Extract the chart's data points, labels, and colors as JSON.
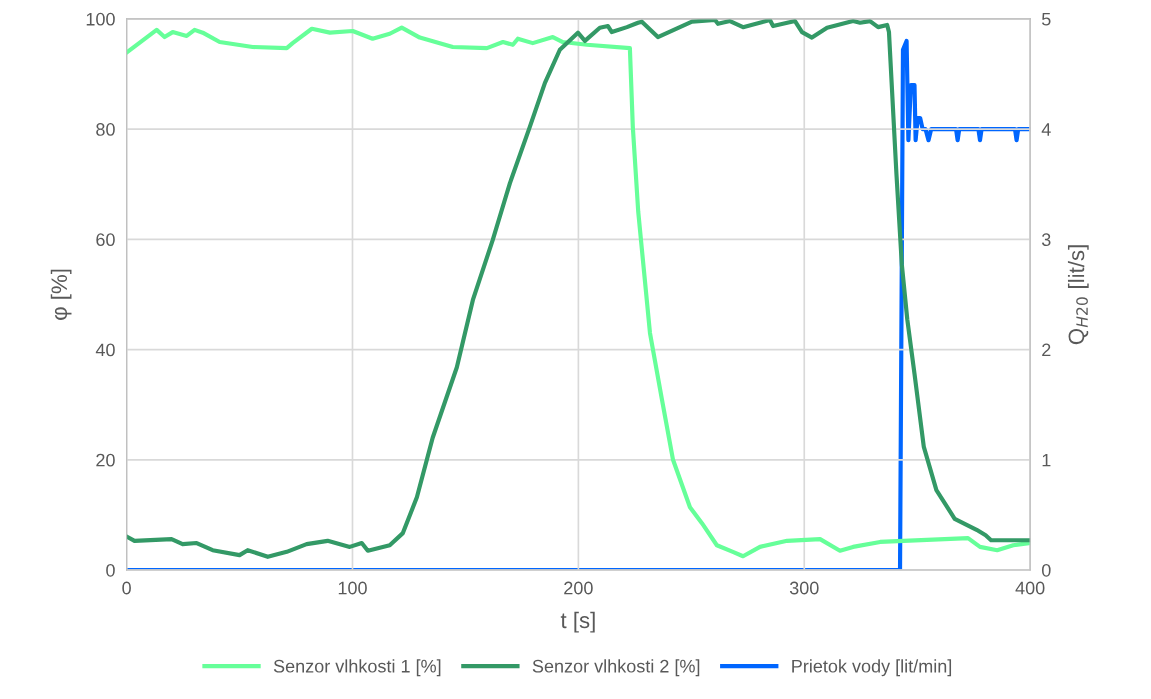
{
  "chart_data": {
    "type": "line",
    "xlabel": "t [s]",
    "ylabel": "φ [%]",
    "y2label": "Q$_{H20}$ [lit/s]",
    "xlim": [
      0,
      400
    ],
    "xticks": [
      0,
      100,
      200,
      300,
      400
    ],
    "ylim": [
      0,
      100
    ],
    "yticks": [
      0,
      20,
      40,
      60,
      80,
      100
    ],
    "y2lim": [
      0,
      5
    ],
    "y2ticks": [
      0,
      1,
      2,
      3,
      4,
      5
    ],
    "grid": true,
    "legend": "bottom",
    "marker": "none",
    "line_style": "solid",
    "series": [
      {
        "name": "Senzor vlhkosti 1 [%]",
        "color": "#66ff99",
        "x": [
          0.4,
          13.3,
          16.8,
          20.4,
          26.6,
          30.1,
          33.7,
          41.2,
          55.8,
          70.9,
          73.5,
          82.0,
          90,
          100.1,
          108.9,
          116.5,
          121.8,
          129.8,
          144.4,
          159.5,
          166.6,
          171.0,
          173.2,
          179.8,
          188.7,
          193.1,
          203.8,
          222.8,
          224.1,
          226.5,
          231.7,
          237,
          241.9,
          249.4,
          254.7,
          261.3,
          268.4,
          272.9,
          280.4,
          292.4,
          307,
          315.8,
          321.6,
          333.6,
          372.5,
          377.8,
          385.4,
          392.5,
          400
        ],
        "values": [
          94.0,
          98.0,
          96.7,
          97.6,
          96.9,
          98.0,
          97.5,
          95.8,
          94.9,
          94.7,
          95.6,
          98.2,
          97.5,
          97.8,
          96.4,
          97.3,
          98.4,
          96.6,
          94.9,
          94.7,
          95.8,
          95.3,
          96.4,
          95.6,
          96.7,
          95.8,
          95.3,
          94.7,
          80.4,
          65.0,
          43.0,
          30.9,
          20.0,
          11.4,
          8.5,
          4.5,
          3.3,
          2.5,
          4.2,
          5.3,
          5.6,
          3.5,
          4.2,
          5.1,
          5.8,
          4.2,
          3.6,
          4.5,
          4.9
        ]
      },
      {
        "name": "Senzor vlhkosti 2 [%]",
        "color": "#339966",
        "x": [
          0.4,
          3.5,
          19.9,
          24.8,
          31,
          38.1,
          50,
          53.6,
          62.5,
          70.9,
          79.7,
          89,
          98.8,
          104.1,
          106.8,
          116.5,
          122.3,
          128.5,
          135.5,
          146.2,
          153.3,
          162.1,
          169.7,
          178.5,
          185.2,
          191.8,
          199.8,
          202.9,
          209.5,
          213.1,
          214.8,
          221.5,
          226.4,
          228.1,
          235.2,
          250.3,
          260.5,
          261.8,
          267.1,
          272.9,
          284.8,
          286.2,
          295.9,
          299,
          303.4,
          310.1,
          321.6,
          324.7,
          329.1,
          332.7,
          336.7,
          337.5,
          340.8,
          343.2,
          345.6,
          348.8,
          352.9,
          358.5,
          366.6,
          376.3,
          380.3,
          382.7,
          400
        ],
        "values": [
          6.0,
          5.3,
          5.6,
          4.7,
          4.9,
          3.6,
          2.7,
          3.6,
          2.4,
          3.3,
          4.7,
          5.3,
          4.2,
          4.9,
          3.5,
          4.5,
          6.7,
          13.2,
          24.0,
          36.8,
          49.0,
          59.9,
          70.2,
          80.4,
          88.4,
          94.4,
          97.5,
          96.0,
          98.4,
          98.7,
          97.6,
          98.5,
          99.3,
          99.5,
          96.7,
          99.5,
          99.8,
          99.1,
          99.6,
          98.5,
          99.8,
          98.7,
          99.6,
          97.6,
          96.6,
          98.4,
          99.6,
          99.3,
          99.6,
          98.5,
          98.9,
          97.6,
          71.9,
          55.4,
          45.5,
          35.6,
          22.4,
          14.5,
          9.3,
          7.3,
          6.3,
          5.4,
          5.4
        ]
      },
      {
        "name": "Prietok vody [lit/min]",
        "color": "#0066ff",
        "axis": "y2",
        "x": [
          0,
          342.4,
          343.7,
          345.3,
          346.1,
          347.2,
          348.8,
          349.3,
          350.2,
          351.3,
          352.4,
          353.7,
          355,
          356.2,
          367.2,
          367.9,
          368.6,
          377.1,
          377.8,
          378.5,
          393.3,
          394,
          394.7,
          400
        ],
        "values": [
          0,
          0,
          4.72,
          4.8,
          3.9,
          4.4,
          4.4,
          3.9,
          4.1,
          4.1,
          4.0,
          4.0,
          3.9,
          4.0,
          4.0,
          3.9,
          4.0,
          4.0,
          3.9,
          4.0,
          4.0,
          3.9,
          4.0,
          4.0
        ]
      }
    ]
  }
}
